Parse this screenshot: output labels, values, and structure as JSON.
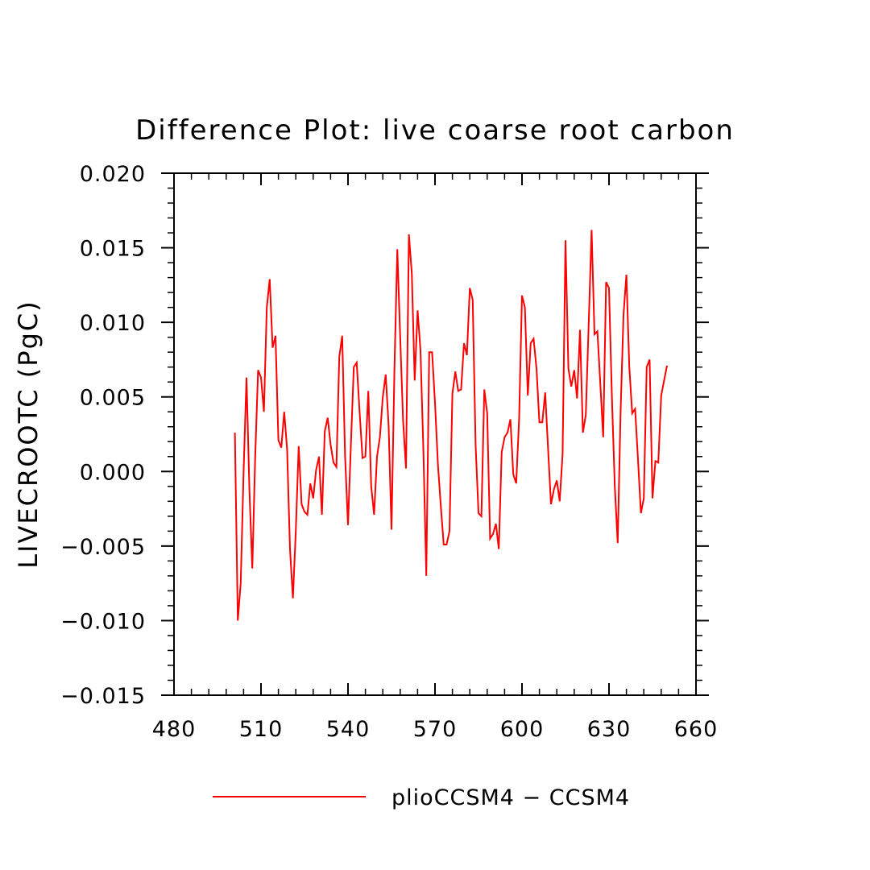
{
  "chart_data": {
    "type": "line",
    "title": "Difference Plot: live coarse root carbon",
    "xlabel": "",
    "ylabel": "LIVECROOTC  (PgC)",
    "xlim": [
      480,
      660
    ],
    "ylim": [
      -0.015,
      0.02
    ],
    "xticks": [
      480,
      510,
      540,
      570,
      600,
      630,
      660
    ],
    "yticks": [
      -0.015,
      -0.01,
      -0.005,
      0.0,
      0.005,
      0.01,
      0.015,
      0.02
    ],
    "xtick_labels": [
      "480",
      "510",
      "540",
      "570",
      "600",
      "630",
      "660"
    ],
    "ytick_labels": [
      "−0.015",
      "−0.010",
      "−0.005",
      "0.000",
      "0.005",
      "0.010",
      "0.015",
      "0.020"
    ],
    "grid": false,
    "legend_position": "bottom-center",
    "series": [
      {
        "name": "plioCCSM4 − CCSM4",
        "color": "#ff0000",
        "x": [
          501,
          502,
          503,
          504,
          505,
          506,
          507,
          508,
          509,
          510,
          511,
          512,
          513,
          514,
          515,
          516,
          517,
          518,
          519,
          520,
          521,
          522,
          523,
          524,
          525,
          526,
          527,
          528,
          529,
          530,
          531,
          532,
          533,
          534,
          535,
          536,
          537,
          538,
          539,
          540,
          541,
          542,
          543,
          544,
          545,
          546,
          547,
          548,
          549,
          550,
          551,
          552,
          553,
          554,
          555,
          556,
          557,
          558,
          559,
          560,
          561,
          562,
          563,
          564,
          565,
          566,
          567,
          568,
          569,
          570,
          571,
          572,
          573,
          574,
          575,
          576,
          577,
          578,
          579,
          580,
          581,
          582,
          583,
          584,
          585,
          586,
          587,
          588,
          589,
          590,
          591,
          592,
          593,
          594,
          595,
          596,
          597,
          598,
          599,
          600,
          601,
          602,
          603,
          604,
          605,
          606,
          607,
          608,
          609,
          610,
          611,
          612,
          613,
          614,
          615,
          616,
          617,
          618,
          619,
          620,
          621,
          622,
          623,
          624,
          625,
          626,
          627,
          628,
          629,
          630,
          631,
          632,
          633,
          634,
          635,
          636,
          637,
          638,
          639,
          640,
          641,
          642,
          643,
          644,
          645,
          646,
          647,
          648,
          649,
          650
        ],
        "y": [
          0.0026,
          -0.01,
          -0.0075,
          0.0,
          0.0063,
          -0.0012,
          -0.0065,
          0.001,
          0.0068,
          0.0063,
          0.004,
          0.011,
          0.0129,
          0.0083,
          0.0091,
          0.0021,
          0.0016,
          0.004,
          0.0015,
          -0.0052,
          -0.0085,
          -0.004,
          0.0017,
          -0.0022,
          -0.0027,
          -0.0029,
          -0.0008,
          -0.0018,
          0.0001,
          0.001,
          -0.0029,
          0.0027,
          0.0036,
          0.0018,
          0.0006,
          0.0003,
          0.0077,
          0.0091,
          0.001,
          -0.0036,
          0.0018,
          0.007,
          0.0073,
          0.004,
          0.0009,
          0.001,
          0.0054,
          -0.001,
          -0.0029,
          0.001,
          0.0023,
          0.005,
          0.0065,
          0.0031,
          -0.0039,
          0.0067,
          0.0149,
          0.009,
          0.0034,
          0.0002,
          0.0159,
          0.0133,
          0.0061,
          0.0108,
          0.0081,
          0.0014,
          -0.007,
          0.008,
          0.008,
          0.0046,
          0.0005,
          -0.0023,
          -0.0049,
          -0.0049,
          -0.004,
          0.0052,
          0.0067,
          0.0054,
          0.0055,
          0.0086,
          0.0078,
          0.0123,
          0.0115,
          0.0018,
          -0.0028,
          -0.003,
          0.0055,
          0.0039,
          -0.0045,
          -0.0042,
          -0.0035,
          -0.0052,
          0.0013,
          0.0023,
          0.0026,
          0.0035,
          -0.0002,
          -0.0008,
          0.0035,
          0.0118,
          0.011,
          0.0051,
          0.0086,
          0.0089,
          0.0069,
          0.0033,
          0.0033,
          0.0053,
          0.0015,
          -0.0022,
          -0.0012,
          -0.0006,
          -0.002,
          0.0012,
          0.0155,
          0.0069,
          0.0057,
          0.0068,
          0.0049,
          0.0095,
          0.0026,
          0.0038,
          0.0099,
          0.0162,
          0.0092,
          0.0094,
          0.0059,
          0.0023,
          0.0127,
          0.0123,
          0.005,
          -0.001,
          -0.0048,
          0.004,
          0.0105,
          0.0132,
          0.007,
          0.0039,
          0.0042,
          0.0008,
          -0.0028,
          -0.0018,
          0.007,
          0.0075,
          -0.0018,
          0.0007,
          0.0006,
          0.0051,
          0.0061,
          0.0071
        ]
      }
    ]
  }
}
